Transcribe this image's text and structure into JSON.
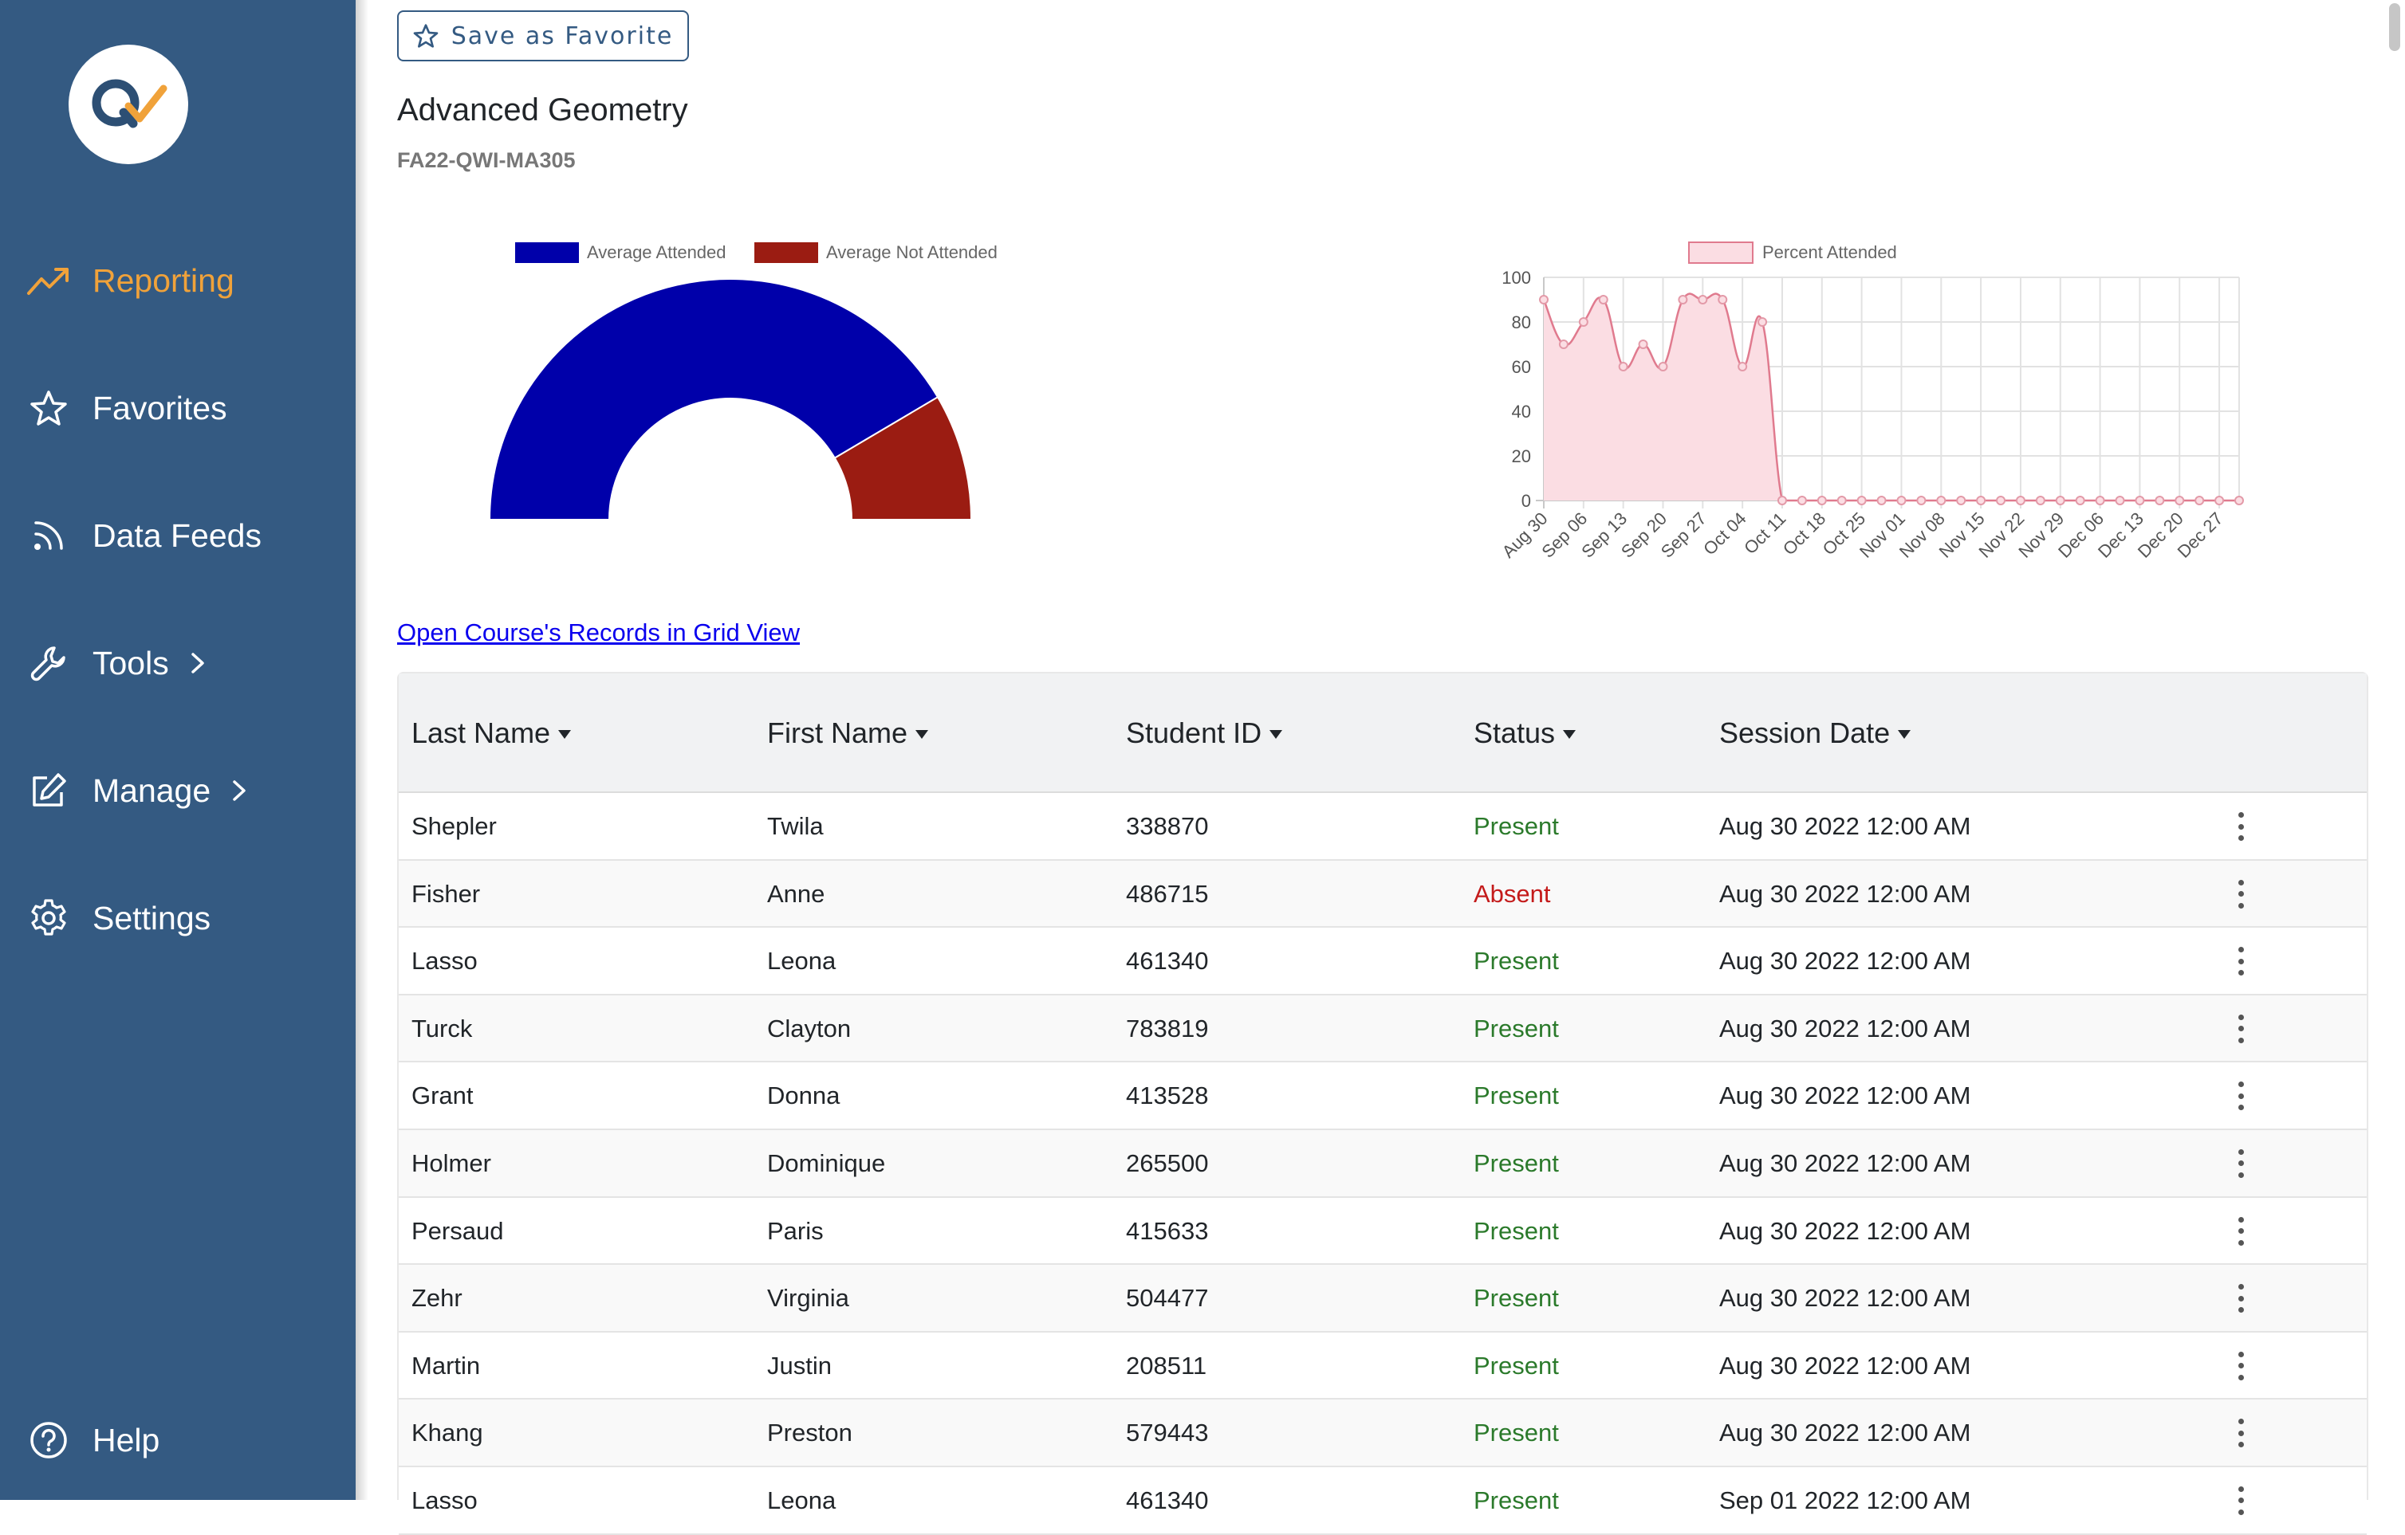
{
  "sidebar": {
    "items": [
      {
        "label": "Reporting",
        "icon": "trend-up-icon",
        "active": true
      },
      {
        "label": "Favorites",
        "icon": "star-icon"
      },
      {
        "label": "Data Feeds",
        "icon": "rss-feed-icon"
      },
      {
        "label": "Tools",
        "icon": "wrench-icon",
        "has_submenu": true
      },
      {
        "label": "Manage",
        "icon": "edit-square-icon",
        "has_submenu": true
      },
      {
        "label": "Settings",
        "icon": "gear-icon"
      }
    ],
    "help_label": "Help",
    "colors": {
      "background": "#345a82",
      "active": "#f0a23a"
    }
  },
  "header": {
    "favorite_button": "Save as Favorite",
    "course_title": "Advanced Geometry",
    "course_code": "FA22-QWI-MA305",
    "grid_link": "Open Course's Records in Grid View"
  },
  "chart_data": [
    {
      "type": "pie",
      "subtype": "half-doughnut",
      "legend": [
        "Average Attended",
        "Average Not Attended"
      ],
      "values": [
        0.83,
        0.17
      ],
      "colors": [
        "#0000aa",
        "#9b1c12"
      ]
    },
    {
      "type": "area",
      "legend": [
        "Percent Attended"
      ],
      "x": [
        "Aug 30",
        "Sep 01",
        "Sep 06",
        "Sep 08",
        "Sep 13",
        "Sep 15",
        "Sep 20",
        "Sep 22",
        "Sep 27",
        "Sep 29",
        "Oct 04",
        "Oct 06",
        "Oct 11",
        "Oct 13",
        "Oct 18",
        "Oct 20",
        "Oct 25",
        "Oct 27",
        "Nov 01",
        "Nov 03",
        "Nov 08",
        "Nov 10",
        "Nov 15",
        "Nov 17",
        "Nov 22",
        "Nov 24",
        "Nov 29",
        "Dec 01",
        "Dec 06",
        "Dec 08",
        "Dec 13",
        "Dec 15",
        "Dec 20",
        "Dec 22",
        "Dec 27",
        "Dec 29"
      ],
      "xticks": [
        "Aug 30",
        "Sep 06",
        "Sep 13",
        "Sep 20",
        "Sep 27",
        "Oct 04",
        "Oct 11",
        "Oct 18",
        "Oct 25",
        "Nov 01",
        "Nov 08",
        "Nov 15",
        "Nov 22",
        "Nov 29",
        "Dec 06",
        "Dec 13",
        "Dec 20",
        "Dec 27"
      ],
      "y": [
        90,
        70,
        80,
        90,
        60,
        70,
        60,
        90,
        90,
        90,
        60,
        80,
        0,
        0,
        0,
        0,
        0,
        0,
        0,
        0,
        0,
        0,
        0,
        0,
        0,
        0,
        0,
        0,
        0,
        0,
        0,
        0,
        0,
        0,
        0,
        0
      ],
      "yticks": [
        0,
        20,
        40,
        60,
        80,
        100
      ],
      "ylim": [
        0,
        100
      ],
      "grid": true,
      "colors": {
        "line": "#e07a8e",
        "fill": "#fbdde3"
      }
    }
  ],
  "table": {
    "columns": [
      "Last Name",
      "First Name",
      "Student ID",
      "Status",
      "Session Date"
    ],
    "rows": [
      [
        "Shepler",
        "Twila",
        "338870",
        "Present",
        "Aug 30 2022 12:00 AM"
      ],
      [
        "Fisher",
        "Anne",
        "486715",
        "Absent",
        "Aug 30 2022 12:00 AM"
      ],
      [
        "Lasso",
        "Leona",
        "461340",
        "Present",
        "Aug 30 2022 12:00 AM"
      ],
      [
        "Turck",
        "Clayton",
        "783819",
        "Present",
        "Aug 30 2022 12:00 AM"
      ],
      [
        "Grant",
        "Donna",
        "413528",
        "Present",
        "Aug 30 2022 12:00 AM"
      ],
      [
        "Holmer",
        "Dominique",
        "265500",
        "Present",
        "Aug 30 2022 12:00 AM"
      ],
      [
        "Persaud",
        "Paris",
        "415633",
        "Present",
        "Aug 30 2022 12:00 AM"
      ],
      [
        "Zehr",
        "Virginia",
        "504477",
        "Present",
        "Aug 30 2022 12:00 AM"
      ],
      [
        "Martin",
        "Justin",
        "208511",
        "Present",
        "Aug 30 2022 12:00 AM"
      ],
      [
        "Khang",
        "Preston",
        "579443",
        "Present",
        "Aug 30 2022 12:00 AM"
      ],
      [
        "Lasso",
        "Leona",
        "461340",
        "Present",
        "Sep 01 2022 12:00 AM"
      ]
    ],
    "status_colors": {
      "Present": "#2b7a2b",
      "Absent": "#c41b1b"
    }
  }
}
